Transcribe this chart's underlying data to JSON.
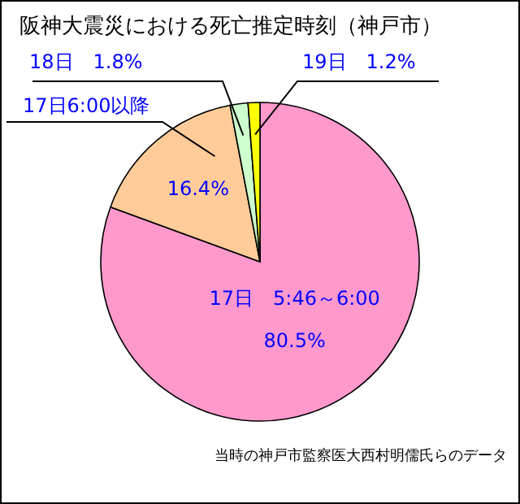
{
  "chart_data": {
    "type": "pie",
    "title": "阪神大震災における死亡推定時刻（神戸市）",
    "categories": [
      "17日　5:46～6:00",
      "17日6:00以降",
      "18日",
      "19日"
    ],
    "values": [
      80.5,
      16.4,
      1.8,
      1.2
    ],
    "value_labels": [
      "80.5%",
      "16.4%",
      "1.8%",
      "1.2%"
    ],
    "colors": [
      "#ff99cc",
      "#ffcc99",
      "#ccffcc",
      "#ffff00"
    ],
    "annotations": [
      "当時の神戸市監察医大西村明儒氏らのデータ"
    ]
  }
}
